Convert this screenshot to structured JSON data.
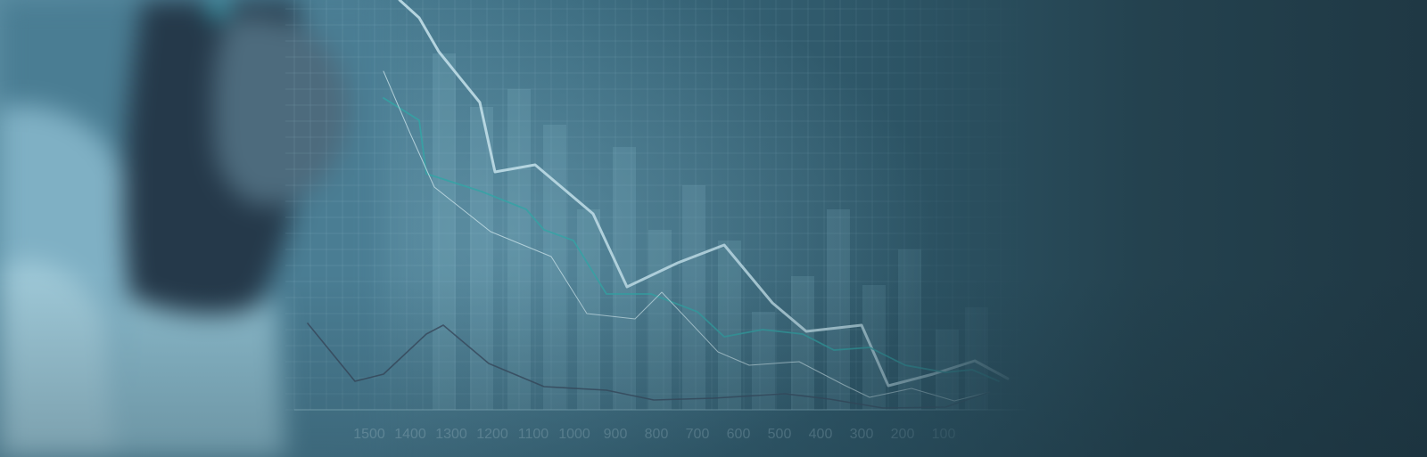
{
  "scene": {
    "colors": {
      "background_dark": "#1f3844",
      "background_light": "#5b8ea3",
      "bar_fill": "#8fc3d4",
      "grid_line": "#a9d3e0",
      "line_bright": "#cfeaf2",
      "line_teal": "#2fa7a6",
      "line_thin": "#d7ecf2",
      "line_dark": "#3a4a5e"
    },
    "x_axis_labels": [
      "1500",
      "1400",
      "1300",
      "1200",
      "1100",
      "1000",
      "900",
      "800",
      "700",
      "600",
      "500",
      "400",
      "300",
      "200",
      "100"
    ]
  }
}
